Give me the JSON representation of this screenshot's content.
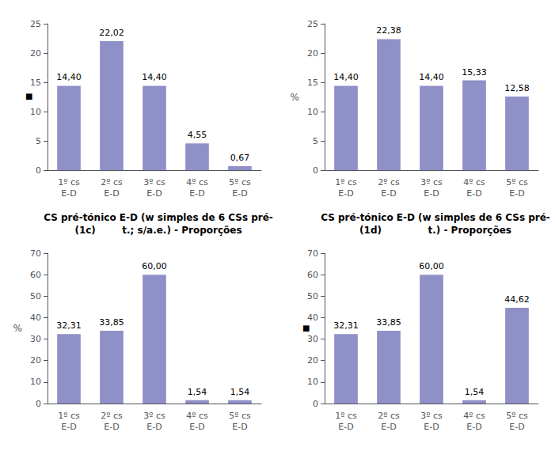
{
  "chart_data": [
    {
      "type": "bar",
      "categories": [
        "1º cs\nE-D",
        "2º cs\nE-D",
        "3º cs\nE-D",
        "4º cs\nE-D",
        "5º cs\nE-D"
      ],
      "values": [
        14.4,
        22.02,
        14.4,
        4.55,
        0.67
      ],
      "value_labels": [
        "14,40",
        "22,02",
        "14,40",
        "4,55",
        "0,67"
      ],
      "data_labels": true,
      "color": "#9090c8",
      "ylim": [
        0,
        25
      ],
      "yticks": [
        0,
        5,
        10,
        15,
        20,
        25
      ],
      "grid": false,
      "annotation": "■"
    },
    {
      "type": "bar",
      "categories": [
        "1º cs\nE-D",
        "2º cs\nE-D",
        "3º cs\nE-D",
        "4º cs\nE-D",
        "5º cs\nE-D"
      ],
      "values": [
        14.4,
        22.38,
        14.4,
        15.33,
        12.58
      ],
      "value_labels": [
        "14,40",
        "22,38",
        "14,40",
        "15,33",
        "12,58"
      ],
      "data_labels": true,
      "color": "#9090c8",
      "ylabel": "%",
      "ylim": [
        0,
        25
      ],
      "yticks": [
        0,
        5,
        10,
        15,
        20,
        25
      ],
      "grid": false
    },
    {
      "type": "bar",
      "title": "CS pré-tónico E-D (w simples de 6 CSs pré-\n(1c)        t.; s/a.e.) - Proporções",
      "categories": [
        "1º cs\nE-D",
        "2º cs\nE-D",
        "3º cs\nE-D",
        "4º cs\nE-D",
        "5º cs\nE-D"
      ],
      "values": [
        32.31,
        33.85,
        60.0,
        1.54,
        1.54
      ],
      "value_labels": [
        "32,31",
        "33,85",
        "60,00",
        "1,54",
        "1,54"
      ],
      "data_labels": true,
      "color": "#9090c8",
      "ylabel": "%",
      "ylim": [
        0,
        70
      ],
      "yticks": [
        0,
        10,
        20,
        30,
        40,
        50,
        60,
        70
      ],
      "grid": false
    },
    {
      "type": "bar",
      "title": "CS pré-tónico E-D (w simples de 6 CSs pré-\n(1d)              t.) - Proporções",
      "categories": [
        "1º cs\nE-D",
        "2º cs\nE-D",
        "3º cs\nE-D",
        "4º cs\nE-D",
        "5º cs\nE-D"
      ],
      "values": [
        32.31,
        33.85,
        60.0,
        1.54,
        44.62
      ],
      "value_labels": [
        "32,31",
        "33,85",
        "60,00",
        "1,54",
        "44,62"
      ],
      "data_labels": true,
      "color": "#9090c8",
      "ylim": [
        0,
        70
      ],
      "yticks": [
        0,
        10,
        20,
        30,
        40,
        50,
        60,
        70
      ],
      "grid": false,
      "annotation": "■"
    }
  ]
}
